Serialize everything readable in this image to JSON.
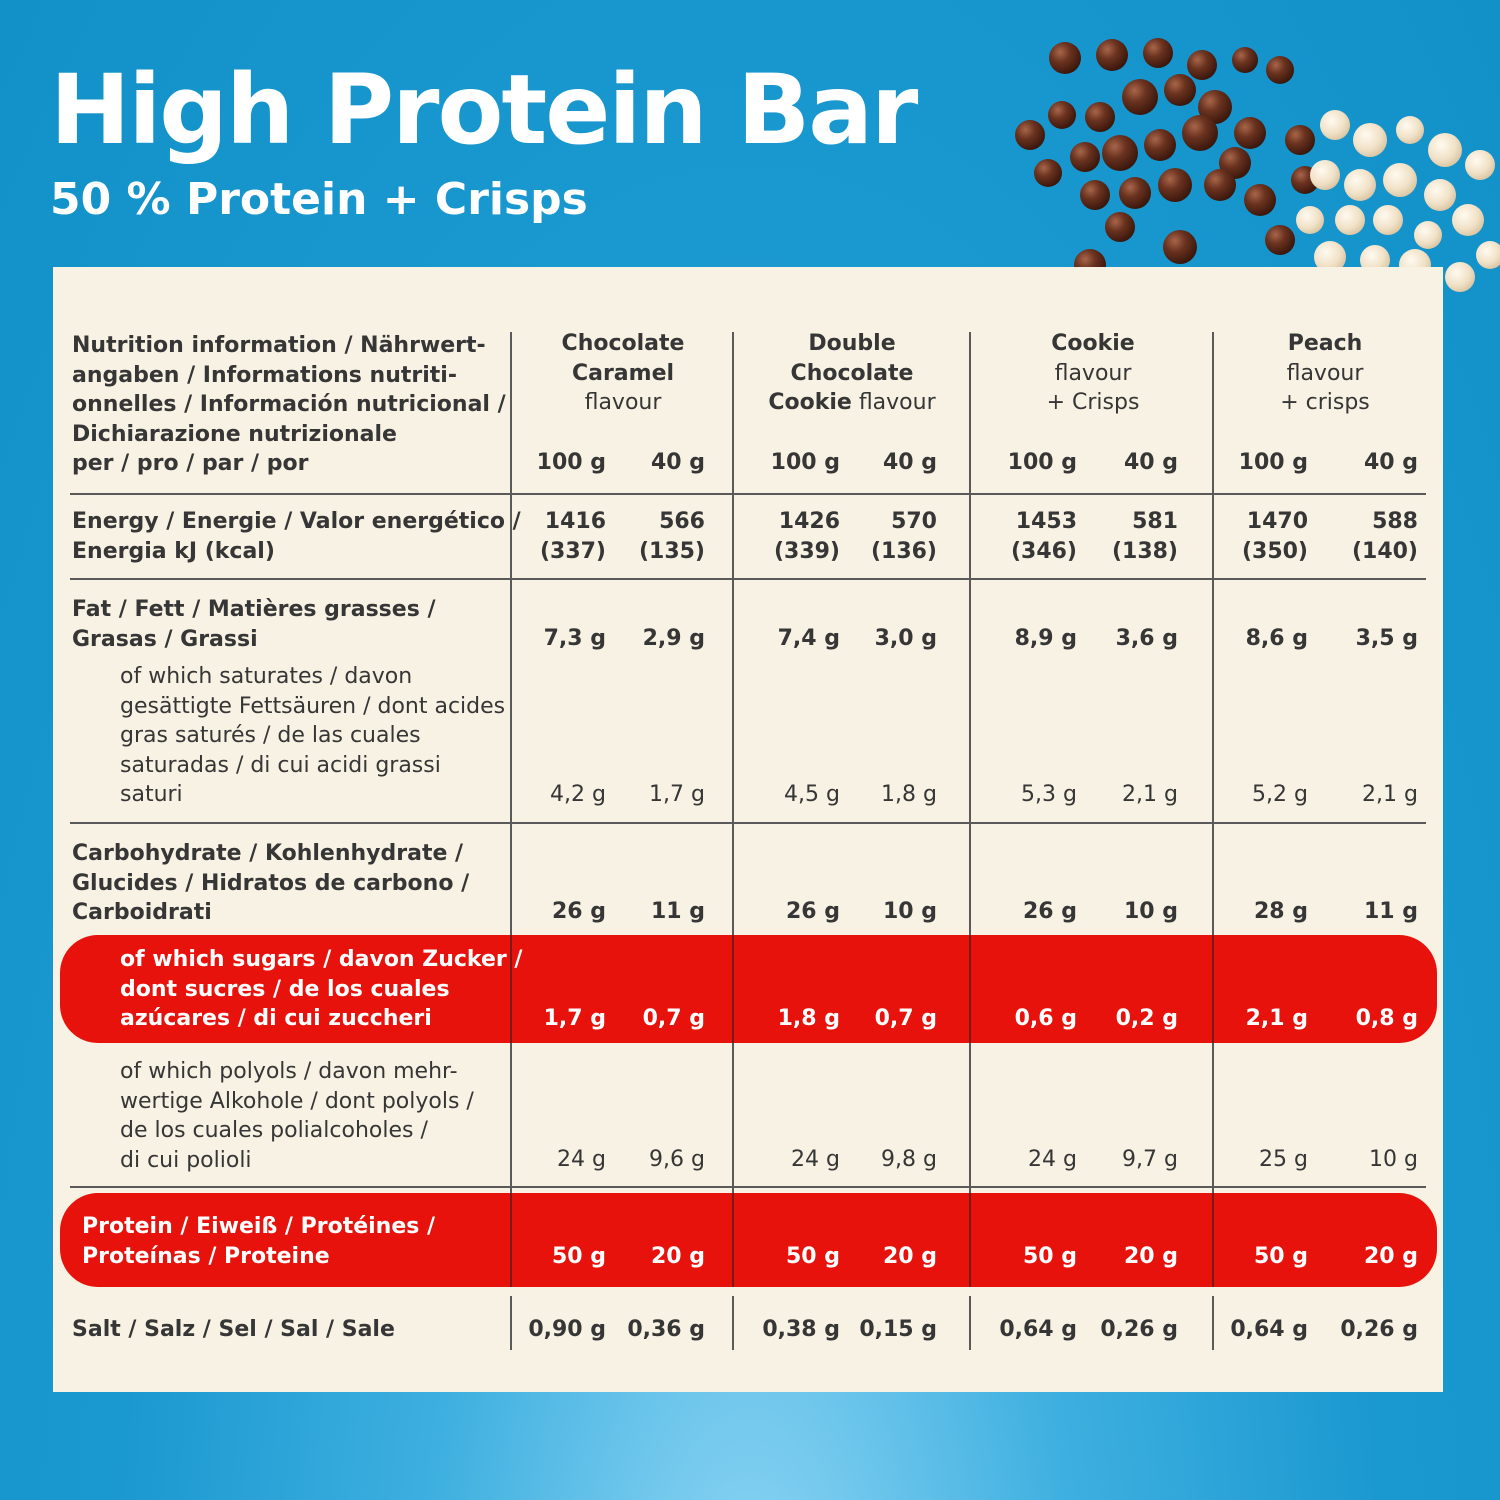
{
  "header": {
    "title": "High Protein Bar",
    "subtitle": "50 % Protein + Crisps"
  },
  "colors": {
    "background": "#1a98d0",
    "panel": "#f8f2e4",
    "highlight": "#e8120c",
    "text": "#363636"
  },
  "table": {
    "header_label": [
      "Nutrition information / Nährwert-",
      "angaben / Informations nutriti-",
      "onnelles / Información nutricional /",
      "Dichiarazione nutrizionale",
      "per / pro / par / por"
    ],
    "flavours": [
      {
        "bold": [
          "Chocolate",
          "Caramel"
        ],
        "tail": [
          "flavour"
        ],
        "col_100": "100 g",
        "col_40": "40 g"
      },
      {
        "bold": [
          "Double",
          "Chocolate",
          "Cookie"
        ],
        "tail": [
          " flavour"
        ],
        "col_100": "100 g",
        "col_40": "40 g"
      },
      {
        "bold": [
          "Cookie"
        ],
        "tail": [
          "flavour",
          "+ Crisps"
        ],
        "col_100": "100 g",
        "col_40": "40 g"
      },
      {
        "bold": [
          "Peach"
        ],
        "tail": [
          "flavour",
          "+ crisps"
        ],
        "col_100": "100 g",
        "col_40": "40 g"
      }
    ],
    "rows": {
      "energy": {
        "label": [
          "Energy / Energie / Valor energético /",
          "Energia kJ (kcal)"
        ],
        "values": [
          [
            "1416",
            "(337)",
            "566",
            "(135)"
          ],
          [
            "1426",
            "(339)",
            "570",
            "(136)"
          ],
          [
            "1453",
            "(346)",
            "581",
            "(138)"
          ],
          [
            "1470",
            "(350)",
            "588",
            "(140)"
          ]
        ]
      },
      "fat": {
        "label": [
          "Fat / Fett / Matières grasses /",
          "Grasas / Grassi"
        ],
        "values": [
          [
            "7,3 g",
            "2,9 g"
          ],
          [
            "7,4 g",
            "3,0 g"
          ],
          [
            "8,9 g",
            "3,6 g"
          ],
          [
            "8,6 g",
            "3,5 g"
          ]
        ]
      },
      "saturates": {
        "label": [
          "of which saturates / davon",
          "gesättigte Fettsäuren / dont acides",
          "gras saturés / de las cuales",
          "saturadas / di cui acidi grassi",
          "saturi"
        ],
        "values": [
          [
            "4,2 g",
            "1,7 g"
          ],
          [
            "4,5 g",
            "1,8 g"
          ],
          [
            "5,3 g",
            "2,1 g"
          ],
          [
            "5,2 g",
            "2,1 g"
          ]
        ]
      },
      "carbohydrate": {
        "label": [
          "Carbohydrate / Kohlenhydrate /",
          "Glucides / Hidratos de carbono /",
          "Carboidrati"
        ],
        "values": [
          [
            "26 g",
            "11 g"
          ],
          [
            "26 g",
            "10 g"
          ],
          [
            "26 g",
            "10 g"
          ],
          [
            "28 g",
            "11 g"
          ]
        ]
      },
      "sugars": {
        "label": [
          "of which sugars / davon Zucker /",
          "dont sucres / de los cuales",
          "azúcares / di cui zuccheri"
        ],
        "values": [
          [
            "1,7 g",
            "0,7 g"
          ],
          [
            "1,8 g",
            "0,7 g"
          ],
          [
            "0,6 g",
            "0,2 g"
          ],
          [
            "2,1 g",
            "0,8 g"
          ]
        ]
      },
      "polyols": {
        "label": [
          "of which polyols / davon mehr-",
          "wertige Alkohole / dont polyols /",
          "de los cuales polialcoholes /",
          "di cui polioli"
        ],
        "values": [
          [
            "24 g",
            "9,6 g"
          ],
          [
            "24 g",
            "9,8 g"
          ],
          [
            "24 g",
            "9,7 g"
          ],
          [
            "25 g",
            "10 g"
          ]
        ]
      },
      "protein": {
        "label": [
          "Protein / Eiweiß / Protéines /",
          "Proteínas / Proteine"
        ],
        "values": [
          [
            "50 g",
            "20 g"
          ],
          [
            "50 g",
            "20 g"
          ],
          [
            "50 g",
            "20 g"
          ],
          [
            "50 g",
            "20 g"
          ]
        ]
      },
      "salt": {
        "label": [
          "Salt / Salz / Sel / Sal / Sale"
        ],
        "values": [
          [
            "0,90 g",
            "0,36 g"
          ],
          [
            "0,38 g",
            "0,15 g"
          ],
          [
            "0,64 g",
            "0,26 g"
          ],
          [
            "0,64 g",
            "0,26 g"
          ]
        ]
      }
    }
  }
}
